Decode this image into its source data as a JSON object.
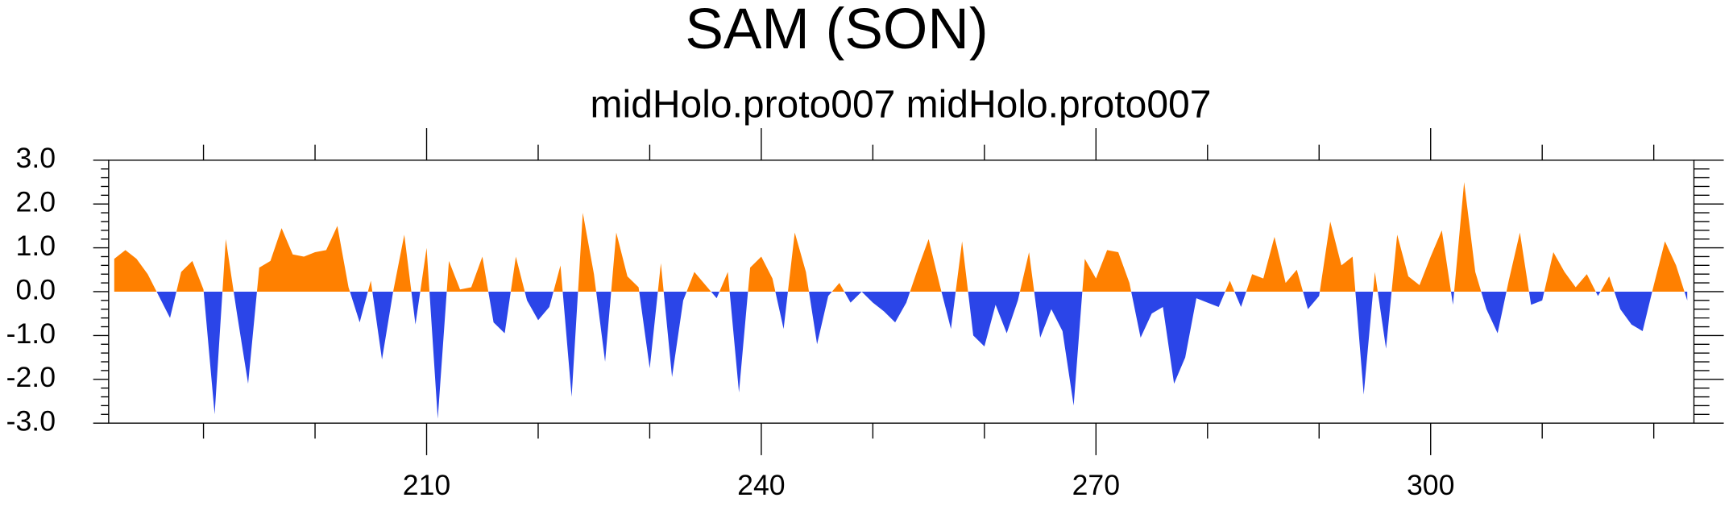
{
  "chart_data": {
    "type": "area",
    "title": "SAM (SON)",
    "subtitle": "midHolo.proto007  midHolo.proto007",
    "x": [
      182,
      183,
      184,
      185,
      186,
      187,
      188,
      189,
      190,
      191,
      192,
      193,
      194,
      195,
      196,
      197,
      198,
      199,
      200,
      201,
      202,
      203,
      204,
      205,
      206,
      207,
      208,
      209,
      210,
      211,
      212,
      213,
      214,
      215,
      216,
      217,
      218,
      219,
      220,
      221,
      222,
      223,
      224,
      225,
      226,
      227,
      228,
      229,
      230,
      231,
      232,
      233,
      234,
      235,
      236,
      237,
      238,
      239,
      240,
      241,
      242,
      243,
      244,
      245,
      246,
      247,
      248,
      249,
      250,
      251,
      252,
      253,
      254,
      255,
      256,
      257,
      258,
      259,
      260,
      261,
      262,
      263,
      264,
      265,
      266,
      267,
      268,
      269,
      270,
      271,
      272,
      273,
      274,
      275,
      276,
      277,
      278,
      279,
      280,
      281,
      282,
      283,
      284,
      285,
      286,
      287,
      288,
      289,
      290,
      291,
      292,
      293,
      294,
      295,
      296,
      297,
      298,
      299,
      300,
      301,
      302,
      303,
      304,
      305,
      306,
      307,
      308,
      309,
      310,
      311,
      312,
      313,
      314,
      315,
      316,
      317,
      318,
      319,
      320,
      321,
      322,
      323
    ],
    "values": [
      0.75,
      0.95,
      0.75,
      0.4,
      -0.1,
      -0.6,
      0.45,
      0.7,
      0.05,
      -2.8,
      1.2,
      -0.5,
      -2.1,
      0.55,
      0.7,
      1.45,
      0.85,
      0.8,
      0.9,
      0.95,
      1.5,
      0.1,
      -0.7,
      0.25,
      -1.55,
      0.0,
      1.3,
      -0.75,
      1.0,
      -2.9,
      0.7,
      0.05,
      0.1,
      0.8,
      -0.7,
      -0.95,
      0.8,
      -0.2,
      -0.65,
      -0.35,
      0.6,
      -2.4,
      1.8,
      0.4,
      -1.6,
      1.35,
      0.35,
      0.1,
      -1.75,
      0.65,
      -1.95,
      -0.2,
      0.45,
      0.15,
      -0.15,
      0.45,
      -2.3,
      0.55,
      0.8,
      0.3,
      -0.85,
      1.35,
      0.45,
      -1.2,
      -0.1,
      0.2,
      -0.25,
      0.0,
      -0.25,
      -0.45,
      -0.7,
      -0.25,
      0.5,
      1.2,
      0.15,
      -0.85,
      1.15,
      -1.0,
      -1.25,
      -0.3,
      -0.95,
      -0.2,
      0.9,
      -1.05,
      -0.4,
      -0.9,
      -2.6,
      0.75,
      0.3,
      0.95,
      0.9,
      0.2,
      -1.05,
      -0.5,
      -0.35,
      -2.1,
      -1.5,
      -0.15,
      -0.25,
      -0.35,
      0.25,
      -0.35,
      0.4,
      0.3,
      1.25,
      0.2,
      0.5,
      -0.4,
      -0.1,
      1.6,
      0.6,
      0.8,
      -2.35,
      0.45,
      -1.3,
      1.3,
      0.35,
      0.15,
      0.8,
      1.4,
      -0.3,
      2.5,
      0.45,
      -0.4,
      -0.95,
      0.25,
      1.35,
      -0.3,
      -0.2,
      0.9,
      0.45,
      0.1,
      0.4,
      -0.1,
      0.35,
      -0.4,
      -0.75,
      -0.9,
      0.15,
      1.15,
      0.6,
      -0.2
    ],
    "positive_color": "#ff8000",
    "negative_color": "#2b45e8",
    "xlim": [
      181.5,
      323.6
    ],
    "xticks": [
      210,
      240,
      270,
      300
    ],
    "ylim": [
      -3.0,
      3.0
    ],
    "yticks": [
      {
        "value": -3.0,
        "label": "-3.0"
      },
      {
        "value": -2.0,
        "label": "-2.0"
      },
      {
        "value": -1.0,
        "label": "-1.0"
      },
      {
        "value": 0.0,
        "label": "0.0"
      },
      {
        "value": 1.0,
        "label": "1.0"
      },
      {
        "value": 2.0,
        "label": "2.0"
      },
      {
        "value": 3.0,
        "label": "3.0"
      }
    ]
  }
}
